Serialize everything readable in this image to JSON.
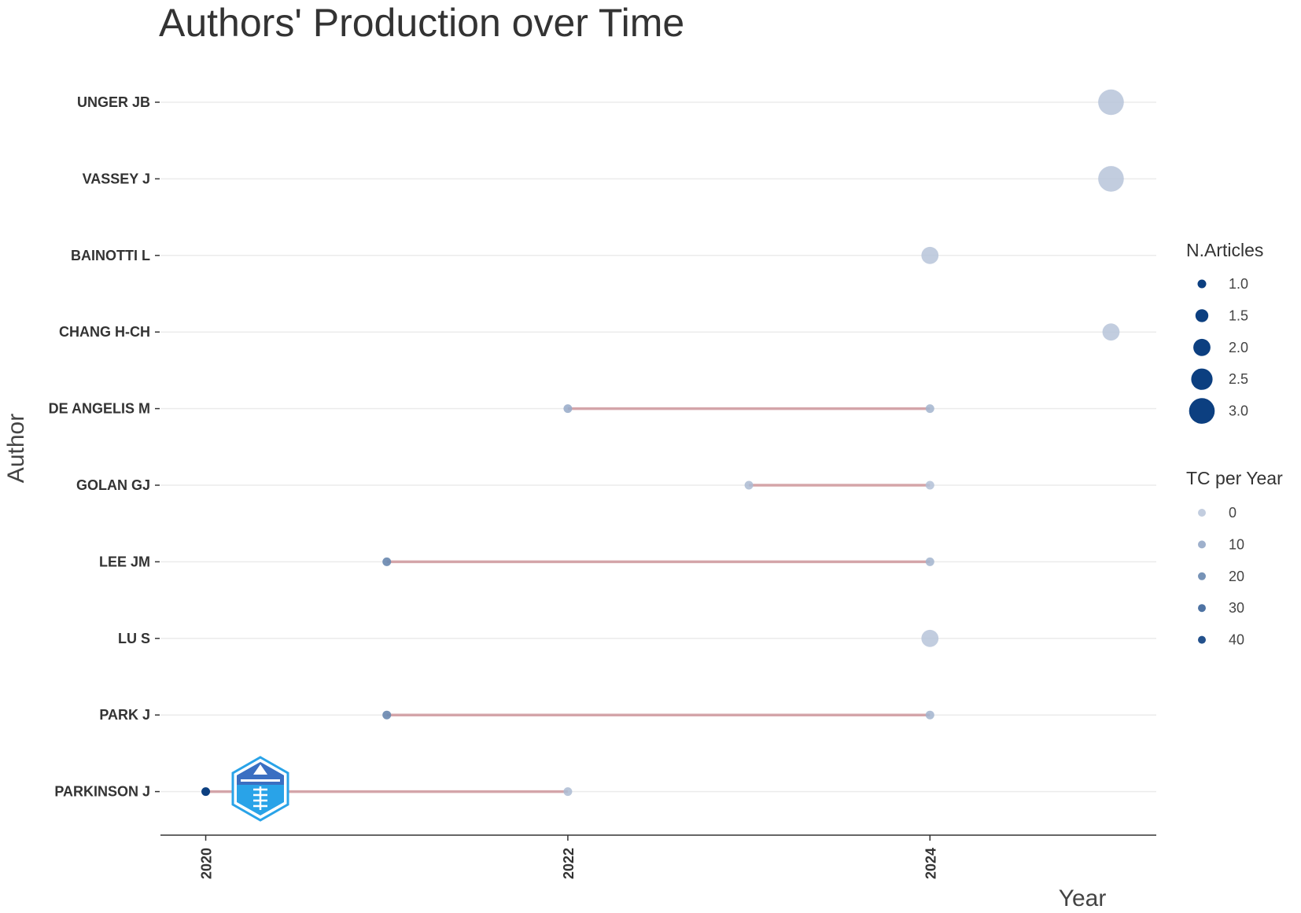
{
  "chart_data": {
    "type": "scatter",
    "title": "Authors' Production over Time",
    "xlabel": "Year",
    "ylabel": "Author",
    "x_ticks": [
      "2020",
      "2022",
      "2024"
    ],
    "xlim": [
      2019.75,
      2025.25
    ],
    "grid": "horizontal",
    "legend_placement": "right",
    "authors": [
      "UNGER JB",
      "VASSEY J",
      "BAINOTTI L",
      "CHANG H-CH",
      "DE ANGELIS M",
      "GOLAN GJ",
      "LEE JM",
      "LU S",
      "PARK J",
      "PARKINSON J"
    ],
    "ranges": [
      {
        "author": "DE ANGELIS M",
        "from": 2022,
        "to": 2024
      },
      {
        "author": "GOLAN GJ",
        "from": 2023,
        "to": 2024
      },
      {
        "author": "LEE JM",
        "from": 2021,
        "to": 2024
      },
      {
        "author": "PARK J",
        "from": 2021,
        "to": 2024
      },
      {
        "author": "PARKINSON J",
        "from": 2020,
        "to": 2022
      }
    ],
    "points": [
      {
        "author": "UNGER JB",
        "year": 2025,
        "n_articles": 3,
        "tc_per_year": 0
      },
      {
        "author": "VASSEY J",
        "year": 2025,
        "n_articles": 3,
        "tc_per_year": 0
      },
      {
        "author": "BAINOTTI L",
        "year": 2024,
        "n_articles": 2,
        "tc_per_year": 0
      },
      {
        "author": "CHANG H-CH",
        "year": 2025,
        "n_articles": 2,
        "tc_per_year": 0
      },
      {
        "author": "DE ANGELIS M",
        "year": 2022,
        "n_articles": 1,
        "tc_per_year": 8
      },
      {
        "author": "DE ANGELIS M",
        "year": 2024,
        "n_articles": 1,
        "tc_per_year": 5
      },
      {
        "author": "GOLAN GJ",
        "year": 2023,
        "n_articles": 1,
        "tc_per_year": 3
      },
      {
        "author": "GOLAN GJ",
        "year": 2024,
        "n_articles": 1,
        "tc_per_year": 1
      },
      {
        "author": "LEE JM",
        "year": 2021,
        "n_articles": 1,
        "tc_per_year": 20
      },
      {
        "author": "LEE JM",
        "year": 2024,
        "n_articles": 1,
        "tc_per_year": 5
      },
      {
        "author": "LU S",
        "year": 2024,
        "n_articles": 2,
        "tc_per_year": 0
      },
      {
        "author": "PARK J",
        "year": 2021,
        "n_articles": 1,
        "tc_per_year": 20
      },
      {
        "author": "PARK J",
        "year": 2024,
        "n_articles": 1,
        "tc_per_year": 5
      },
      {
        "author": "PARKINSON J",
        "year": 2020,
        "n_articles": 1,
        "tc_per_year": 45
      },
      {
        "author": "PARKINSON J",
        "year": 2022,
        "n_articles": 1,
        "tc_per_year": 3
      }
    ],
    "legend_size": {
      "title": "N.Articles",
      "labels": [
        "1.0",
        "1.5",
        "2.0",
        "2.5",
        "3.0"
      ],
      "values": [
        1.0,
        1.5,
        2.0,
        2.5,
        3.0
      ]
    },
    "legend_color": {
      "title": "TC per Year",
      "labels": [
        "0",
        "10",
        "20",
        "30",
        "40"
      ],
      "values": [
        0,
        10,
        20,
        30,
        40
      ]
    },
    "colors": {
      "low": "#b7c4d9",
      "high": "#0c3f80",
      "segment": "#c98b90",
      "grid": "#ebebeb",
      "axis": "#333333",
      "logo_light": "#29a3e8",
      "logo_dark": "#3a6fc2"
    }
  }
}
